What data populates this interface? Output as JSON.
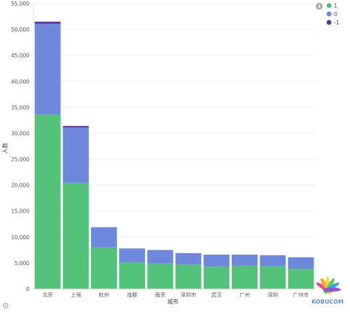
{
  "chart_data": {
    "type": "bar",
    "stacked": true,
    "categories": [
      "北京",
      "上海",
      "杭州",
      "成都",
      "南京",
      "深圳市",
      "武汉",
      "广州",
      "深圳",
      "广州市"
    ],
    "series": [
      {
        "name": "1",
        "color": "#54c27a",
        "values": [
          33600,
          20400,
          8000,
          5100,
          4900,
          4700,
          4300,
          4500,
          4400,
          3900
        ]
      },
      {
        "name": "0",
        "color": "#7088db",
        "values": [
          17500,
          10700,
          3900,
          2700,
          2600,
          2200,
          2300,
          2100,
          2100,
          2200
        ]
      },
      {
        "name": "-1",
        "color": "#5b3a9e",
        "values": [
          400,
          300,
          0,
          0,
          0,
          0,
          0,
          0,
          0,
          0
        ]
      }
    ],
    "ylim": [
      0,
      55000
    ],
    "yticks": [
      0,
      5000,
      10000,
      15000,
      20000,
      25000,
      30000,
      35000,
      40000,
      45000,
      50000,
      55000
    ],
    "ytick_labels": [
      "0",
      "5,000",
      "10,000",
      "15,000",
      "20,000",
      "25,000",
      "30,000",
      "35,000",
      "40,000",
      "45,000",
      "50,000",
      "55,000"
    ],
    "xlabel": "城市",
    "ylabel": "人数",
    "grid": true,
    "legend_position": "top-right"
  },
  "watermark_text": "KOBUCOM"
}
